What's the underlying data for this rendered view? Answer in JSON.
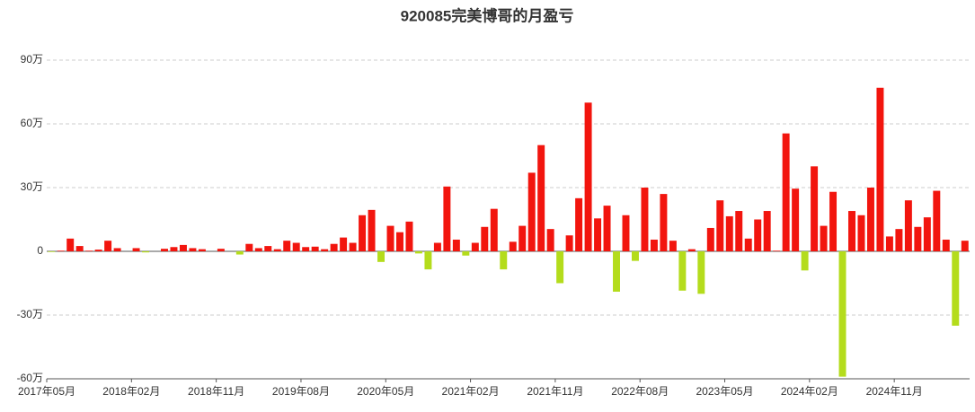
{
  "chart_data": {
    "type": "bar",
    "title": "920085完美博哥的月盈亏",
    "categories": [
      "2017年05月",
      null,
      null,
      null,
      null,
      null,
      null,
      null,
      null,
      "2018年02月",
      null,
      null,
      null,
      null,
      null,
      null,
      null,
      null,
      "2018年11月",
      null,
      null,
      null,
      null,
      null,
      null,
      null,
      null,
      "2019年08月",
      null,
      null,
      null,
      null,
      null,
      null,
      null,
      null,
      "2020年05月",
      null,
      null,
      null,
      null,
      null,
      null,
      null,
      null,
      "2021年02月",
      null,
      null,
      null,
      null,
      null,
      null,
      null,
      null,
      "2021年11月",
      null,
      null,
      null,
      null,
      null,
      null,
      null,
      null,
      "2022年08月",
      null,
      null,
      null,
      null,
      null,
      null,
      null,
      null,
      "2023年05月",
      null,
      null,
      null,
      null,
      null,
      null,
      null,
      null,
      "2024年02月",
      null,
      null,
      null,
      null,
      null,
      null,
      null,
      null,
      "2024年11月",
      null,
      null,
      null,
      null,
      null,
      null,
      null
    ],
    "values": [
      -0.3,
      0.3,
      6,
      2.5,
      0.3,
      0.8,
      5,
      1.5,
      0,
      1.5,
      -0.5,
      0,
      1.2,
      2,
      3,
      1.5,
      1,
      0,
      1.2,
      0,
      -1.5,
      3.5,
      1.5,
      2.5,
      1,
      5,
      4,
      2,
      2.2,
      1,
      3.5,
      6.5,
      4,
      17,
      19.5,
      -5,
      12,
      9,
      14,
      -1,
      -8.5,
      4,
      30.5,
      5.5,
      -2,
      4,
      11.5,
      20,
      -8.5,
      4.5,
      12,
      37,
      50,
      10.5,
      -15,
      7.5,
      25,
      70,
      15.5,
      21.5,
      -19,
      17,
      -4.5,
      30,
      5.5,
      27,
      5,
      -18.5,
      1,
      -20,
      11,
      24,
      16.5,
      19,
      6,
      15,
      19,
      0.3,
      55.5,
      29.5,
      -9,
      40,
      12,
      28,
      -59,
      19,
      17,
      30,
      77,
      7,
      10.5,
      24,
      11.5,
      16,
      28.5,
      5.5,
      -35,
      5
    ],
    "positive_color": "#f2150e",
    "negative_color": "#b4dc1c",
    "ylim": [
      -60,
      90
    ],
    "yticks": [
      {
        "value": -60,
        "label": "-60万"
      },
      {
        "value": -30,
        "label": "-30万"
      },
      0,
      {
        "value": 30,
        "label": "30万"
      },
      {
        "value": 60,
        "label": "60万"
      },
      {
        "value": 90,
        "label": "90万"
      }
    ],
    "grid": true
  }
}
